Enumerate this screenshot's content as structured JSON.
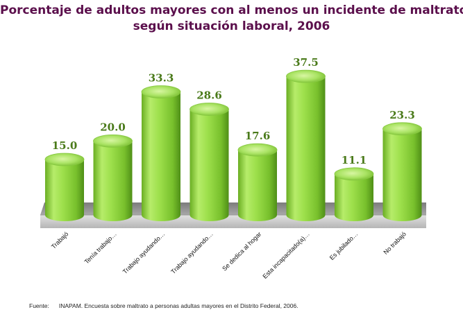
{
  "chart_data": {
    "type": "bar",
    "title": "Porcentaje de adultos mayores con al menos un incidente de maltrato,",
    "subtitle": "según situación laboral, 2006",
    "categories": [
      "Trabajó",
      "Tenía trabajo…",
      "Trabajo ayudando…",
      "Trabajo ayudando…",
      "Se dedica al hogar",
      "Esta incapacitado(a)…",
      "Es jubilado…",
      "No trabajó"
    ],
    "values": [
      15.0,
      20.0,
      33.3,
      28.6,
      17.6,
      37.5,
      11.1,
      23.3
    ],
    "value_labels": [
      "15.0",
      "20.0",
      "33.3",
      "28.6",
      "17.6",
      "37.5",
      "11.1",
      "23.3"
    ],
    "ylim": [
      0,
      40
    ],
    "xlabel": "",
    "ylabel": "",
    "grid": false,
    "legend": "none"
  },
  "colors": {
    "title": "#5b0f4c",
    "value_label": "#4a7a1a",
    "bar_light": "#d6f59a",
    "bar_mid": "#8fd63a",
    "bar_dark": "#4f8f17",
    "floor": "#8f8f8f"
  },
  "footnote": {
    "label": "Fuente:",
    "text": "INAPAM. Encuesta sobre maltrato a personas adultas mayores en el Distrito Federal, 2006."
  }
}
